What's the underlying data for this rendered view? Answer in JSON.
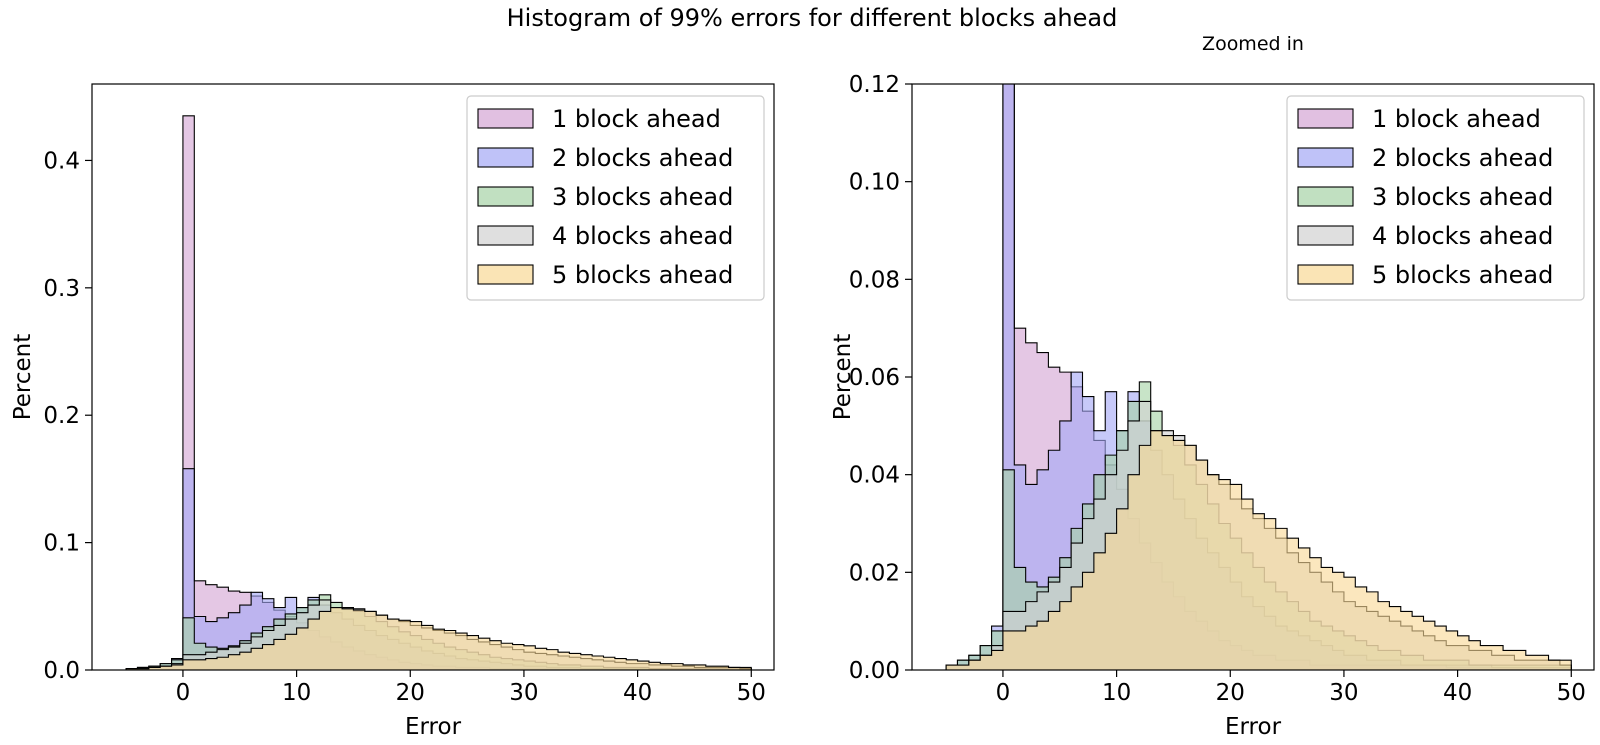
{
  "figure": {
    "title": "Histogram of 99% errors for different blocks ahead"
  },
  "colors": {
    "1 block ahead": "#d4a5d4",
    "2 blocks ahead": "#a4a8f5",
    "3 blocks ahead": "#a7d3a7",
    "4 blocks ahead": "#d2d2d2",
    "5 blocks ahead": "#f8d896"
  },
  "chart_data": [
    {
      "type": "histogram",
      "title": "",
      "xlabel": "Error",
      "ylabel": "Percent",
      "xlim": [
        -8,
        52
      ],
      "ylim": [
        0,
        0.46
      ],
      "xticks": [
        0,
        10,
        20,
        30,
        40,
        50
      ],
      "yticks": [
        0.0,
        0.1,
        0.2,
        0.3,
        0.4
      ],
      "ytick_labels": [
        "0.0",
        "0.1",
        "0.2",
        "0.3",
        "0.4"
      ],
      "legend_position": "top-right",
      "bin_start": -5,
      "bin_width": 1,
      "series": [
        {
          "name": "1 block ahead",
          "values": [
            0.001,
            0.001,
            0.002,
            0.003,
            0.005,
            0.435,
            0.07,
            0.067,
            0.065,
            0.062,
            0.061,
            0.058,
            0.053,
            0.047,
            0.042,
            0.037,
            0.031,
            0.026,
            0.022,
            0.018,
            0.015,
            0.012,
            0.01,
            0.008,
            0.006,
            0.005,
            0.004,
            0.003,
            0.003,
            0.002,
            0.002,
            0.002,
            0.001,
            0.001,
            0.001,
            0.001,
            0.001,
            0.001,
            0.001,
            0.001,
            0.001,
            0.001,
            0.001,
            0.001,
            0.0005,
            0.0005,
            0.0005,
            0.0005,
            0.0005,
            0.0005,
            0.0005,
            0.0005,
            0.0005,
            0.0005,
            0.0005
          ]
        },
        {
          "name": "2 blocks ahead",
          "values": [
            0.001,
            0.002,
            0.003,
            0.005,
            0.009,
            0.158,
            0.042,
            0.038,
            0.041,
            0.045,
            0.051,
            0.061,
            0.056,
            0.049,
            0.057,
            0.049,
            0.057,
            0.051,
            0.045,
            0.04,
            0.035,
            0.031,
            0.027,
            0.024,
            0.021,
            0.018,
            0.015,
            0.013,
            0.011,
            0.009,
            0.008,
            0.007,
            0.006,
            0.005,
            0.004,
            0.003,
            0.003,
            0.002,
            0.002,
            0.002,
            0.001,
            0.001,
            0.001,
            0.001,
            0.001,
            0.001,
            0.001,
            0.001,
            0.0005,
            0.0005,
            0.0005,
            0.0005,
            0.0005,
            0.0005,
            0.0005
          ]
        },
        {
          "name": "3 blocks ahead",
          "values": [
            0.001,
            0.002,
            0.003,
            0.005,
            0.008,
            0.041,
            0.021,
            0.018,
            0.017,
            0.019,
            0.023,
            0.029,
            0.034,
            0.04,
            0.044,
            0.049,
            0.055,
            0.059,
            0.053,
            0.048,
            0.046,
            0.042,
            0.038,
            0.034,
            0.03,
            0.027,
            0.024,
            0.021,
            0.018,
            0.016,
            0.014,
            0.012,
            0.01,
            0.009,
            0.008,
            0.007,
            0.006,
            0.005,
            0.004,
            0.004,
            0.003,
            0.003,
            0.002,
            0.002,
            0.002,
            0.002,
            0.001,
            0.001,
            0.001,
            0.001,
            0.001,
            0.001,
            0.001,
            0.001,
            0.001
          ]
        },
        {
          "name": "4 blocks ahead",
          "values": [
            0.001,
            0.001,
            0.002,
            0.003,
            0.005,
            0.012,
            0.012,
            0.014,
            0.016,
            0.018,
            0.021,
            0.026,
            0.031,
            0.035,
            0.04,
            0.045,
            0.051,
            0.055,
            0.049,
            0.049,
            0.048,
            0.046,
            0.043,
            0.04,
            0.038,
            0.035,
            0.033,
            0.031,
            0.029,
            0.027,
            0.024,
            0.022,
            0.02,
            0.018,
            0.016,
            0.014,
            0.013,
            0.012,
            0.011,
            0.01,
            0.009,
            0.008,
            0.007,
            0.006,
            0.005,
            0.005,
            0.004,
            0.004,
            0.003,
            0.003,
            0.002,
            0.002,
            0.002,
            0.002,
            0.001
          ]
        },
        {
          "name": "5 blocks ahead",
          "values": [
            0.001,
            0.001,
            0.002,
            0.003,
            0.004,
            0.008,
            0.008,
            0.009,
            0.01,
            0.012,
            0.014,
            0.017,
            0.02,
            0.024,
            0.028,
            0.033,
            0.04,
            0.046,
            0.049,
            0.048,
            0.047,
            0.046,
            0.043,
            0.04,
            0.039,
            0.038,
            0.035,
            0.032,
            0.031,
            0.029,
            0.027,
            0.025,
            0.023,
            0.021,
            0.02,
            0.019,
            0.017,
            0.016,
            0.014,
            0.013,
            0.012,
            0.011,
            0.01,
            0.009,
            0.008,
            0.007,
            0.006,
            0.005,
            0.005,
            0.004,
            0.004,
            0.003,
            0.003,
            0.002,
            0.002
          ]
        }
      ]
    },
    {
      "type": "histogram",
      "title": "Zoomed in",
      "xlabel": "Error",
      "ylabel": "Percent",
      "xlim": [
        -8,
        52
      ],
      "ylim": [
        0,
        0.12
      ],
      "xticks": [
        0,
        10,
        20,
        30,
        40,
        50
      ],
      "yticks": [
        0.0,
        0.02,
        0.04,
        0.06,
        0.08,
        0.1,
        0.12
      ],
      "ytick_labels": [
        "0.00",
        "0.02",
        "0.04",
        "0.06",
        "0.08",
        "0.10",
        "0.12"
      ],
      "legend_position": "top-right",
      "bin_start": -5,
      "bin_width": 1,
      "same_series_as": 0
    }
  ]
}
